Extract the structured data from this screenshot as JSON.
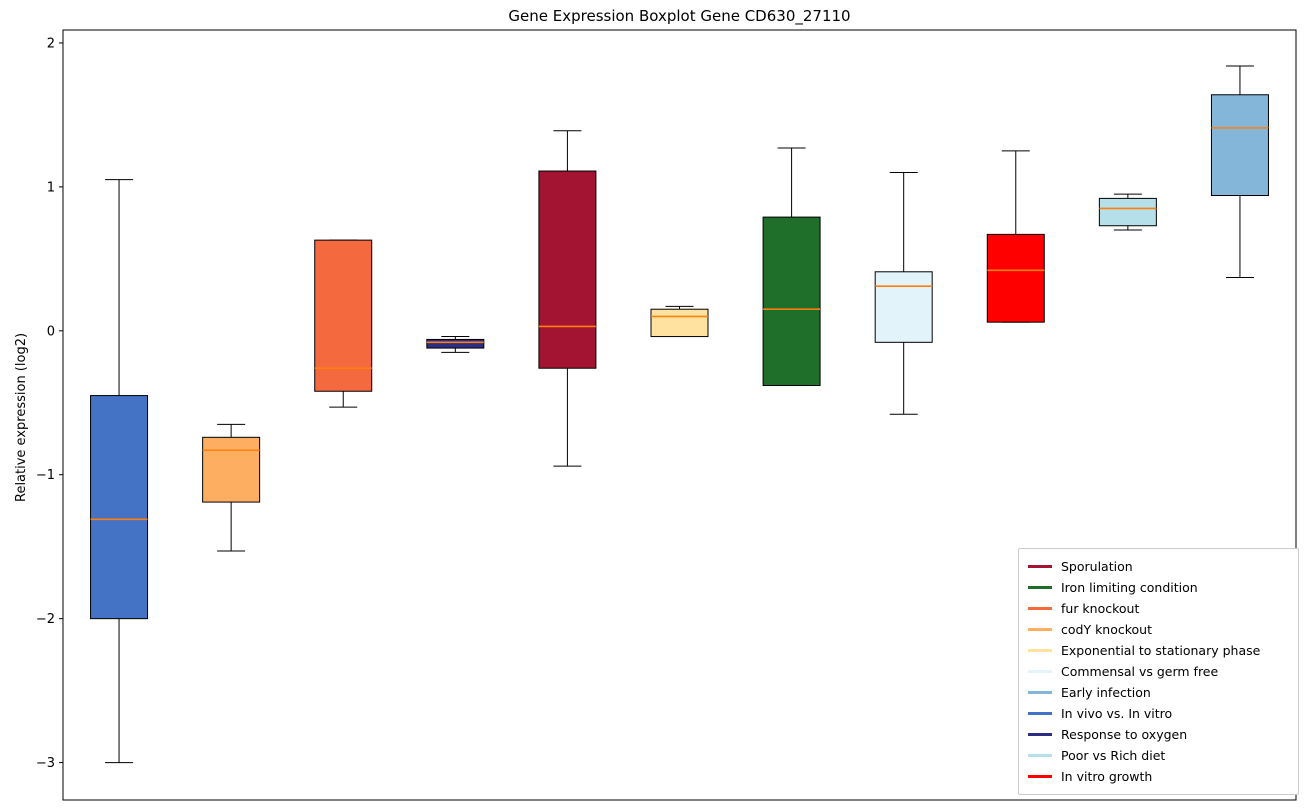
{
  "chart_data": {
    "type": "boxplot",
    "title": "Gene Expression Boxplot Gene CD630_27110",
    "ylabel": "Relative expression (log2)",
    "ylim": [
      -3.26,
      2.09
    ],
    "yticks": [
      2,
      1,
      0,
      -1,
      -2,
      -3
    ],
    "grid": false,
    "legend_position": "lower right",
    "median_color": "#ff7f0e",
    "boxes": [
      {
        "label": "In vivo vs. In vitro",
        "color": "#4472c4",
        "whisker_low": -3.0,
        "q1": -2.0,
        "median": -1.31,
        "q3": -0.45,
        "whisker_high": 1.05
      },
      {
        "label": "codY knockout",
        "color": "#fdae61",
        "whisker_low": -1.53,
        "q1": -1.19,
        "median": -0.83,
        "q3": -0.74,
        "whisker_high": -0.65
      },
      {
        "label": "fur knockout",
        "color": "#f4693e",
        "whisker_low": -0.53,
        "q1": -0.42,
        "median": -0.26,
        "q3": 0.63,
        "whisker_high": 0.63
      },
      {
        "label": "Response to oxygen",
        "color": "#2d2e83",
        "whisker_low": -0.15,
        "q1": -0.12,
        "median": -0.08,
        "q3": -0.06,
        "whisker_high": -0.04
      },
      {
        "label": "Sporulation",
        "color": "#a31432",
        "whisker_low": -0.94,
        "q1": -0.26,
        "median": 0.03,
        "q3": 1.11,
        "whisker_high": 1.39
      },
      {
        "label": "Exponential to stationary phase",
        "color": "#ffe1a0",
        "whisker_low": -0.04,
        "q1": -0.04,
        "median": 0.1,
        "q3": 0.15,
        "whisker_high": 0.17
      },
      {
        "label": "Iron limiting condition",
        "color": "#1f6f2a",
        "whisker_low": -0.38,
        "q1": -0.38,
        "median": 0.15,
        "q3": 0.79,
        "whisker_high": 1.27
      },
      {
        "label": "Commensal vs germ free",
        "color": "#e2f3f9",
        "whisker_low": -0.58,
        "q1": -0.08,
        "median": 0.31,
        "q3": 0.41,
        "whisker_high": 1.1
      },
      {
        "label": "In vitro growth",
        "color": "#ff0000",
        "whisker_low": 0.06,
        "q1": 0.06,
        "median": 0.42,
        "q3": 0.67,
        "whisker_high": 1.25
      },
      {
        "label": "Poor vs Rich diet",
        "color": "#b5dfe9",
        "whisker_low": 0.7,
        "q1": 0.73,
        "median": 0.85,
        "q3": 0.92,
        "whisker_high": 0.95
      },
      {
        "label": "Early infection",
        "color": "#83b6d9",
        "whisker_low": 0.37,
        "q1": 0.94,
        "median": 1.41,
        "q3": 1.64,
        "whisker_high": 1.84
      }
    ],
    "legend": [
      {
        "label": "Sporulation",
        "color": "#a31432"
      },
      {
        "label": "Iron limiting condition",
        "color": "#1f6f2a"
      },
      {
        "label": "fur knockout",
        "color": "#f4693e"
      },
      {
        "label": "codY knockout",
        "color": "#fdae61"
      },
      {
        "label": "Exponential to stationary phase",
        "color": "#ffe1a0"
      },
      {
        "label": "Commensal vs germ free",
        "color": "#e2f3f9"
      },
      {
        "label": "Early infection",
        "color": "#83b6d9"
      },
      {
        "label": "In vivo vs. In vitro",
        "color": "#4472c4"
      },
      {
        "label": "Response to oxygen",
        "color": "#2d2e83"
      },
      {
        "label": "Poor vs Rich diet",
        "color": "#b5dfe9"
      },
      {
        "label": "In vitro growth",
        "color": "#ff0000"
      }
    ]
  }
}
